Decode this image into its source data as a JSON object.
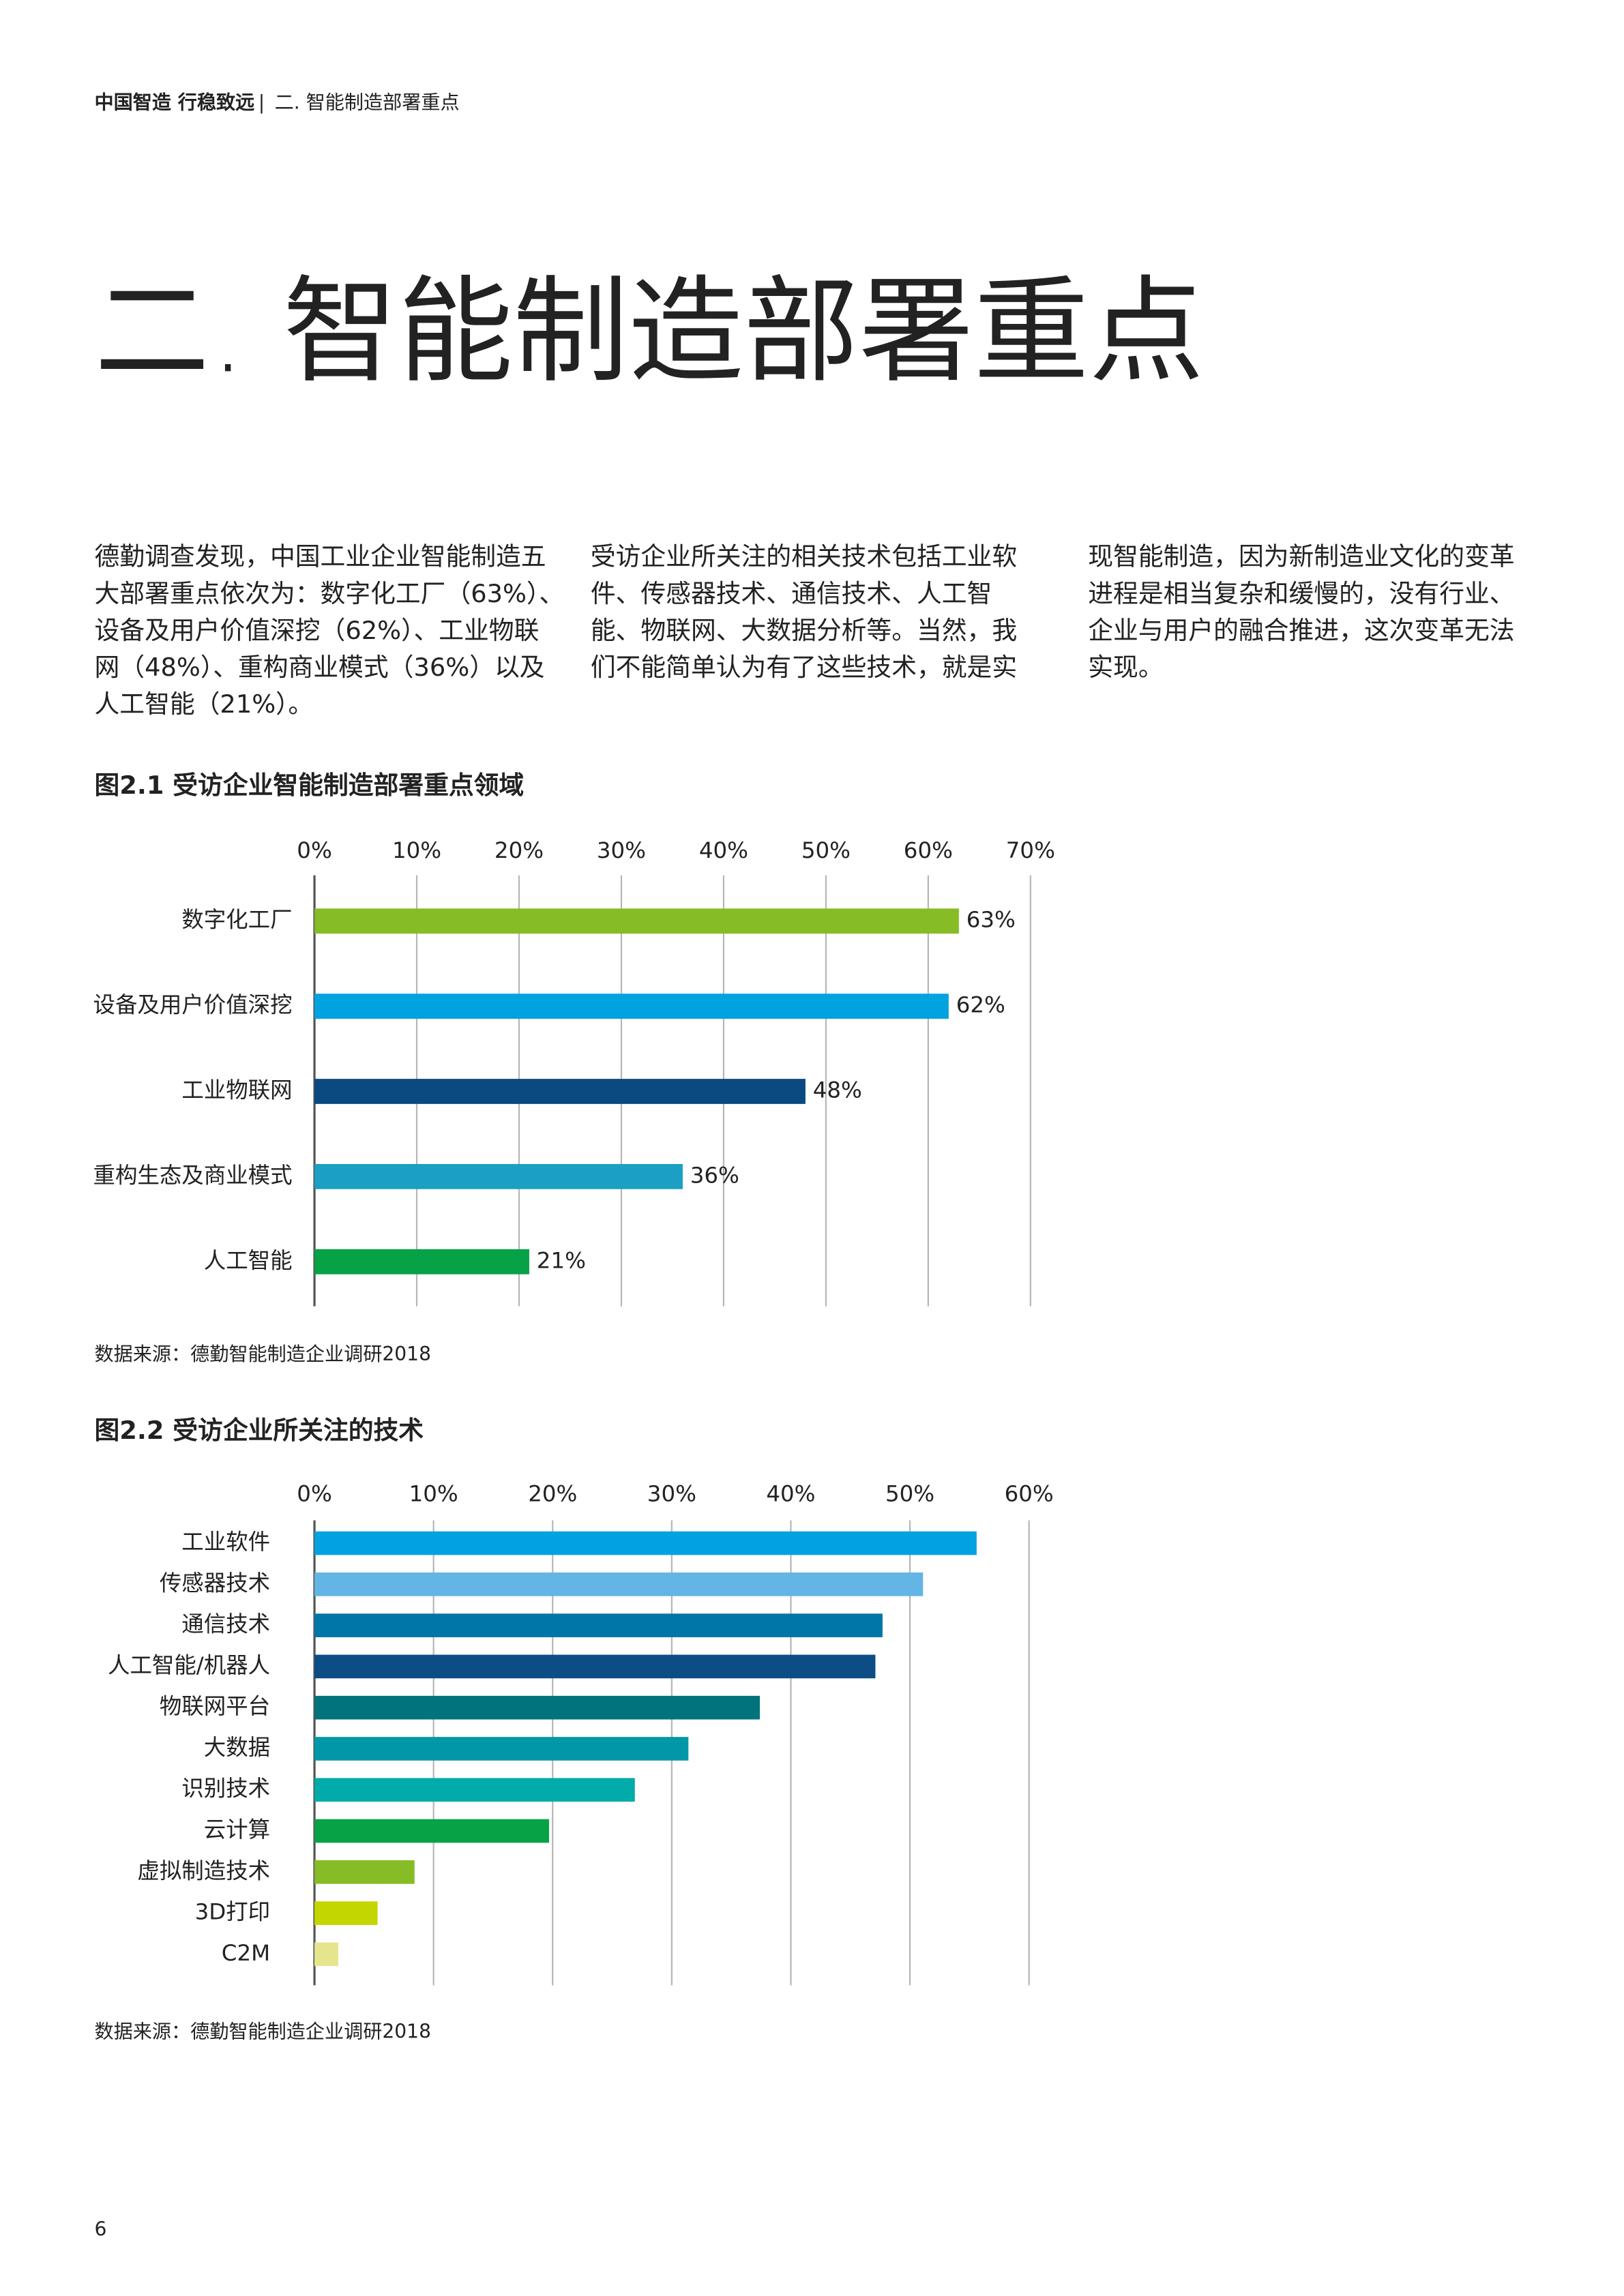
{
  "header": {
    "brand": "中国智造 行稳致远",
    "separator": "|",
    "section": "二. 智能制造部署重点"
  },
  "title": "二. 智能制造部署重点",
  "paragraphs": [
    {
      "lines": [
        "德勤调查发现，中国工业企业智能制造五",
        "大部署重点依次为：数字化工厂（63%）、",
        "设备及用户价值深挖（62%）、工业物联",
        "网（48%）、重构商业模式（36%）以及",
        "人工智能（21%）。"
      ]
    },
    {
      "lines": [
        "受访企业所关注的相关技术包括工业软",
        "件、传感器技术、通信技术、人工智",
        "能、物联网、大数据分析等。当然，我",
        "们不能简单认为有了这些技术，就是实"
      ]
    },
    {
      "lines": [
        "现智能制造，因为新制造业文化的变革",
        "进程是相当复杂和缓慢的，没有行业、",
        "企业与用户的融合推进，这次变革无法",
        "实现。"
      ]
    }
  ],
  "page_number": "6",
  "chart_data": [
    {
      "type": "hbar",
      "title": "图2.1 受访企业智能制造部署重点领域",
      "categories": [
        "数字化工厂",
        "设备及用户价值深挖",
        "工业物联网",
        "重构生态及商业模式",
        "人工智能"
      ],
      "values": [
        63,
        62,
        48,
        36,
        21
      ],
      "value_labels": [
        "63%",
        "62%",
        "48%",
        "36%",
        "21%"
      ],
      "colors": [
        "#86bc25",
        "#00a3e0",
        "#0b4a80",
        "#1b9fc3",
        "#08a246"
      ],
      "xlim": [
        0,
        70
      ],
      "xticks": [
        {
          "value": 0,
          "label": "0%"
        },
        {
          "value": 10,
          "label": "10%"
        },
        {
          "value": 20,
          "label": "20%"
        },
        {
          "value": 30,
          "label": "30%"
        },
        {
          "value": 40,
          "label": "40%"
        },
        {
          "value": 50,
          "label": "50%"
        },
        {
          "value": 60,
          "label": "60%"
        },
        {
          "value": 70,
          "label": "70%"
        }
      ],
      "grid": true,
      "source": "数据来源：德勤智能制造企业调研2018"
    },
    {
      "type": "hbar",
      "title": "图2.2 受访企业所关注的技术",
      "categories": [
        "工业软件",
        "传感器技术",
        "通信技术",
        "人工智能/机器人",
        "物联网平台",
        "大数据",
        "识别技术",
        "云计算",
        "虚拟制造技术",
        "3D打印",
        "C2M"
      ],
      "values": [
        55.6,
        51.1,
        47.7,
        47.1,
        37.4,
        31.4,
        26.9,
        19.7,
        8.4,
        5.3,
        2.0
      ],
      "colors": [
        "#00a3e0",
        "#62b5e5",
        "#0076a8",
        "#0c4d86",
        "#00737d",
        "#0097a9",
        "#00aba9",
        "#08a246",
        "#86bc25",
        "#c4d600",
        "#e6e58e"
      ],
      "xlim": [
        0,
        60
      ],
      "xticks": [
        {
          "value": 0,
          "label": "0%"
        },
        {
          "value": 10,
          "label": "10%"
        },
        {
          "value": 20,
          "label": "20%"
        },
        {
          "value": 30,
          "label": "30%"
        },
        {
          "value": 40,
          "label": "40%"
        },
        {
          "value": 50,
          "label": "50%"
        },
        {
          "value": 60,
          "label": "60%"
        }
      ],
      "grid": true,
      "source": "数据来源：德勤智能制造企业调研2018"
    }
  ]
}
